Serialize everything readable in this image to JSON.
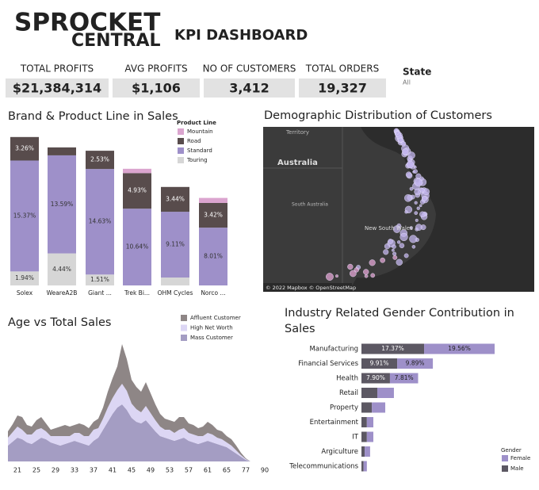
{
  "header": {
    "logo_top": "SPROCKET",
    "logo_bottom": "CENTRAL",
    "title": "KPI DASHBOARD"
  },
  "kpis": [
    {
      "label": "TOTAL PROFITS",
      "value": "$21,384,314"
    },
    {
      "label": "AVG PROFITS",
      "value": "$1,106"
    },
    {
      "label": "NO OF CUSTOMERS",
      "value": "3,412"
    },
    {
      "label": "TOTAL ORDERS",
      "value": "19,327"
    }
  ],
  "filter": {
    "label": "State",
    "value": "All"
  },
  "map": {
    "title": "Demographic Distribution of Customers",
    "labels": [
      "Territory",
      "Australia",
      "South Australia",
      "New South Wales"
    ],
    "credit": "© 2022 Mapbox © OpenStreetMap"
  },
  "chart_data": [
    {
      "type": "bar",
      "title": "Brand & Product Line in Sales",
      "legend_title": "Product Line",
      "categories": [
        "Solex",
        "WeareA2B",
        "Giant ...",
        "Trek Bi...",
        "OHM Cycles",
        "Norco ..."
      ],
      "series": [
        {
          "name": "Mountain",
          "color": "#dba5cf",
          "values": [
            0,
            0,
            0,
            0.6,
            0,
            0.7
          ],
          "value_labels": [
            null,
            null,
            null,
            null,
            null,
            null
          ]
        },
        {
          "name": "Road",
          "color": "#584c4c",
          "values": [
            3.26,
            1.1,
            2.53,
            4.93,
            3.44,
            3.42
          ],
          "value_labels": [
            "3.26%",
            null,
            "2.53%",
            "4.93%",
            "3.44%",
            "3.42%"
          ]
        },
        {
          "name": "Standard",
          "color": "#9e90c9",
          "values": [
            15.37,
            13.59,
            14.63,
            10.64,
            9.11,
            8.01
          ],
          "value_labels": [
            "15.37%",
            "13.59%",
            "14.63%",
            "10.64%",
            "9.11%",
            "8.01%"
          ]
        },
        {
          "name": "Touring",
          "color": "#d6d6d6",
          "values": [
            1.94,
            4.44,
            1.51,
            0,
            1.1,
            0
          ],
          "value_labels": [
            "1.94%",
            "4.44%",
            "1.51%",
            null,
            null,
            null
          ]
        }
      ]
    },
    {
      "type": "area",
      "title": "Age vs Total Sales",
      "categories": [
        null,
        null,
        "21",
        null,
        null,
        null,
        "25",
        null,
        null,
        null,
        "29",
        null,
        null,
        null,
        "33",
        null,
        null,
        null,
        "37",
        null,
        null,
        null,
        "41",
        null,
        null,
        null,
        "45",
        null,
        null,
        null,
        "49",
        null,
        null,
        null,
        "53",
        null,
        null,
        null,
        "57",
        null,
        null,
        null,
        "61",
        null,
        null,
        null,
        "65",
        null,
        null,
        null,
        "77",
        null,
        null,
        null,
        "90",
        null
      ],
      "series": [
        {
          "name": "Affluent Customer",
          "color": "#8e8686",
          "values": [
            8,
            10,
            14,
            16,
            12,
            10,
            12,
            14,
            10,
            8,
            10,
            12,
            14,
            12,
            10,
            12,
            14,
            10,
            10,
            12,
            14,
            20,
            25,
            30,
            50,
            40,
            30,
            28,
            26,
            30,
            25,
            20,
            16,
            14,
            12,
            14,
            16,
            14,
            12,
            12,
            10,
            12,
            14,
            12,
            10,
            10,
            8,
            8,
            6,
            3,
            1,
            0,
            0,
            0,
            0,
            0
          ]
        },
        {
          "name": "High Net Worth",
          "color": "#dcd6f4",
          "values": [
            10,
            12,
            14,
            12,
            10,
            12,
            14,
            12,
            10,
            8,
            10,
            12,
            10,
            8,
            10,
            12,
            10,
            12,
            14,
            12,
            14,
            18,
            20,
            22,
            26,
            24,
            18,
            16,
            14,
            18,
            16,
            14,
            12,
            10,
            12,
            10,
            12,
            12,
            10,
            10,
            10,
            8,
            10,
            10,
            8,
            8,
            6,
            6,
            4,
            2,
            1,
            0,
            0,
            0,
            0,
            0
          ]
        },
        {
          "name": "Mass Customer",
          "color": "#a49dc3",
          "values": [
            20,
            25,
            30,
            28,
            24,
            22,
            26,
            30,
            28,
            24,
            22,
            20,
            22,
            24,
            26,
            24,
            22,
            20,
            26,
            30,
            40,
            50,
            60,
            68,
            72,
            65,
            55,
            50,
            48,
            52,
            45,
            38,
            32,
            30,
            28,
            26,
            28,
            30,
            26,
            24,
            22,
            24,
            26,
            24,
            22,
            20,
            18,
            14,
            10,
            6,
            2,
            0,
            0,
            0,
            0,
            0
          ]
        }
      ]
    },
    {
      "type": "barh",
      "title": "Industry Related Gender Contribution in Sales",
      "legend_title": "Gender",
      "categories": [
        "Manufacturing",
        "Financial Services",
        "Health",
        "Retail",
        "Property",
        "Entertainment",
        "IT",
        "Argiculture",
        "Telecommunications"
      ],
      "series": [
        {
          "name": "Male",
          "color": "#5c5863",
          "values": [
            17.37,
            9.91,
            7.9,
            4.4,
            2.9,
            1.5,
            1.5,
            0.9,
            0.6
          ],
          "value_labels": [
            "17.37%",
            "9.91%",
            "7.90%",
            null,
            null,
            null,
            null,
            null,
            null
          ]
        },
        {
          "name": "Female",
          "color": "#9e90c9",
          "values": [
            19.56,
            9.89,
            7.81,
            4.6,
            3.7,
            1.8,
            1.8,
            1.5,
            0.9
          ],
          "value_labels": [
            "19.56%",
            "9.89%",
            "7.81%",
            null,
            null,
            null,
            null,
            null,
            null
          ]
        }
      ]
    }
  ]
}
